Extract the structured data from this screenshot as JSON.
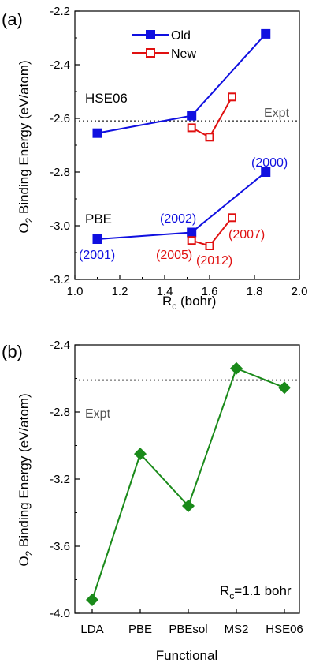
{
  "chart_data": [
    {
      "type": "line",
      "panel_label": "(a)",
      "xlabel_main": "R",
      "xlabel_sub": "c",
      "xlabel_rest": " (bohr)",
      "ylabel_prefix": "O",
      "ylabel_sub": "2",
      "ylabel_rest": " Binding Energy (eV/atom)",
      "xlim": [
        1.0,
        2.0
      ],
      "ylim": [
        -3.2,
        -2.2
      ],
      "xticks": [
        "1.0",
        "1.2",
        "1.4",
        "1.6",
        "1.8",
        "2.0"
      ],
      "xtick_values": [
        1.0,
        1.2,
        1.4,
        1.6,
        1.8,
        2.0
      ],
      "yticks": [
        "-2.2",
        "-2.4",
        "-2.6",
        "-2.8",
        "-3.0",
        "-3.2"
      ],
      "ytick_values": [
        -2.2,
        -2.4,
        -2.6,
        -2.8,
        -3.0,
        -3.2
      ],
      "legend_position": "top-center",
      "reference_line": {
        "label": "Expt",
        "y": -2.61,
        "color": "#555555"
      },
      "series": [
        {
          "name": "Old",
          "group": "HSE06",
          "color": "#1010e0",
          "marker": "square-filled",
          "x": [
            1.1,
            1.52,
            1.85
          ],
          "y": [
            -2.655,
            -2.59,
            -2.285
          ]
        },
        {
          "name": "Old",
          "group": "PBE",
          "color": "#1010e0",
          "marker": "square-filled",
          "x": [
            1.1,
            1.52,
            1.85
          ],
          "y": [
            -3.05,
            -3.025,
            -2.8
          ]
        },
        {
          "name": "New",
          "group": "HSE06",
          "color": "#e01010",
          "marker": "square-open",
          "x": [
            1.52,
            1.6,
            1.7
          ],
          "y": [
            -2.635,
            -2.67,
            -2.52
          ]
        },
        {
          "name": "New",
          "group": "PBE",
          "color": "#e01010",
          "marker": "square-open",
          "x": [
            1.52,
            1.6,
            1.7
          ],
          "y": [
            -3.055,
            -3.075,
            -2.97
          ]
        }
      ],
      "legend": [
        {
          "label": "Old",
          "color": "#1010e0",
          "marker": "square-filled"
        },
        {
          "label": "New",
          "color": "#e01010",
          "marker": "square-open"
        }
      ],
      "annotations": [
        {
          "text": "HSE06",
          "color": "#000000"
        },
        {
          "text": "PBE",
          "color": "#000000"
        },
        {
          "text": "(2000)",
          "color": "#1010e0"
        },
        {
          "text": "(2002)",
          "color": "#1010e0"
        },
        {
          "text": "(2001)",
          "color": "#1010e0"
        },
        {
          "text": "(2005)",
          "color": "#e01010"
        },
        {
          "text": "(2012)",
          "color": "#e01010"
        },
        {
          "text": "(2007)",
          "color": "#e01010"
        }
      ]
    },
    {
      "type": "line",
      "panel_label": "(b)",
      "xlabel": "Functional",
      "ylabel_prefix": "O",
      "ylabel_sub": "2",
      "ylabel_rest": " Binding Energy (eV/atom)",
      "categories": [
        "LDA",
        "PBE",
        "PBEsol",
        "MS2",
        "HSE06"
      ],
      "ylim": [
        -4.0,
        -2.4
      ],
      "yticks": [
        "-2.4",
        "-2.8",
        "-3.2",
        "-3.6",
        "-4.0"
      ],
      "ytick_values": [
        -2.4,
        -2.8,
        -3.2,
        -3.6,
        -4.0
      ],
      "reference_line": {
        "label": "Expt",
        "y": -2.61,
        "color": "#555555"
      },
      "series": [
        {
          "name": "",
          "color": "#1a8a1a",
          "marker": "diamond-filled",
          "values": [
            -3.92,
            -3.05,
            -3.36,
            -2.54,
            -2.655
          ]
        }
      ],
      "annotation": {
        "prefix": "R",
        "sub": "c",
        "rest": "=1.1 bohr"
      }
    }
  ]
}
